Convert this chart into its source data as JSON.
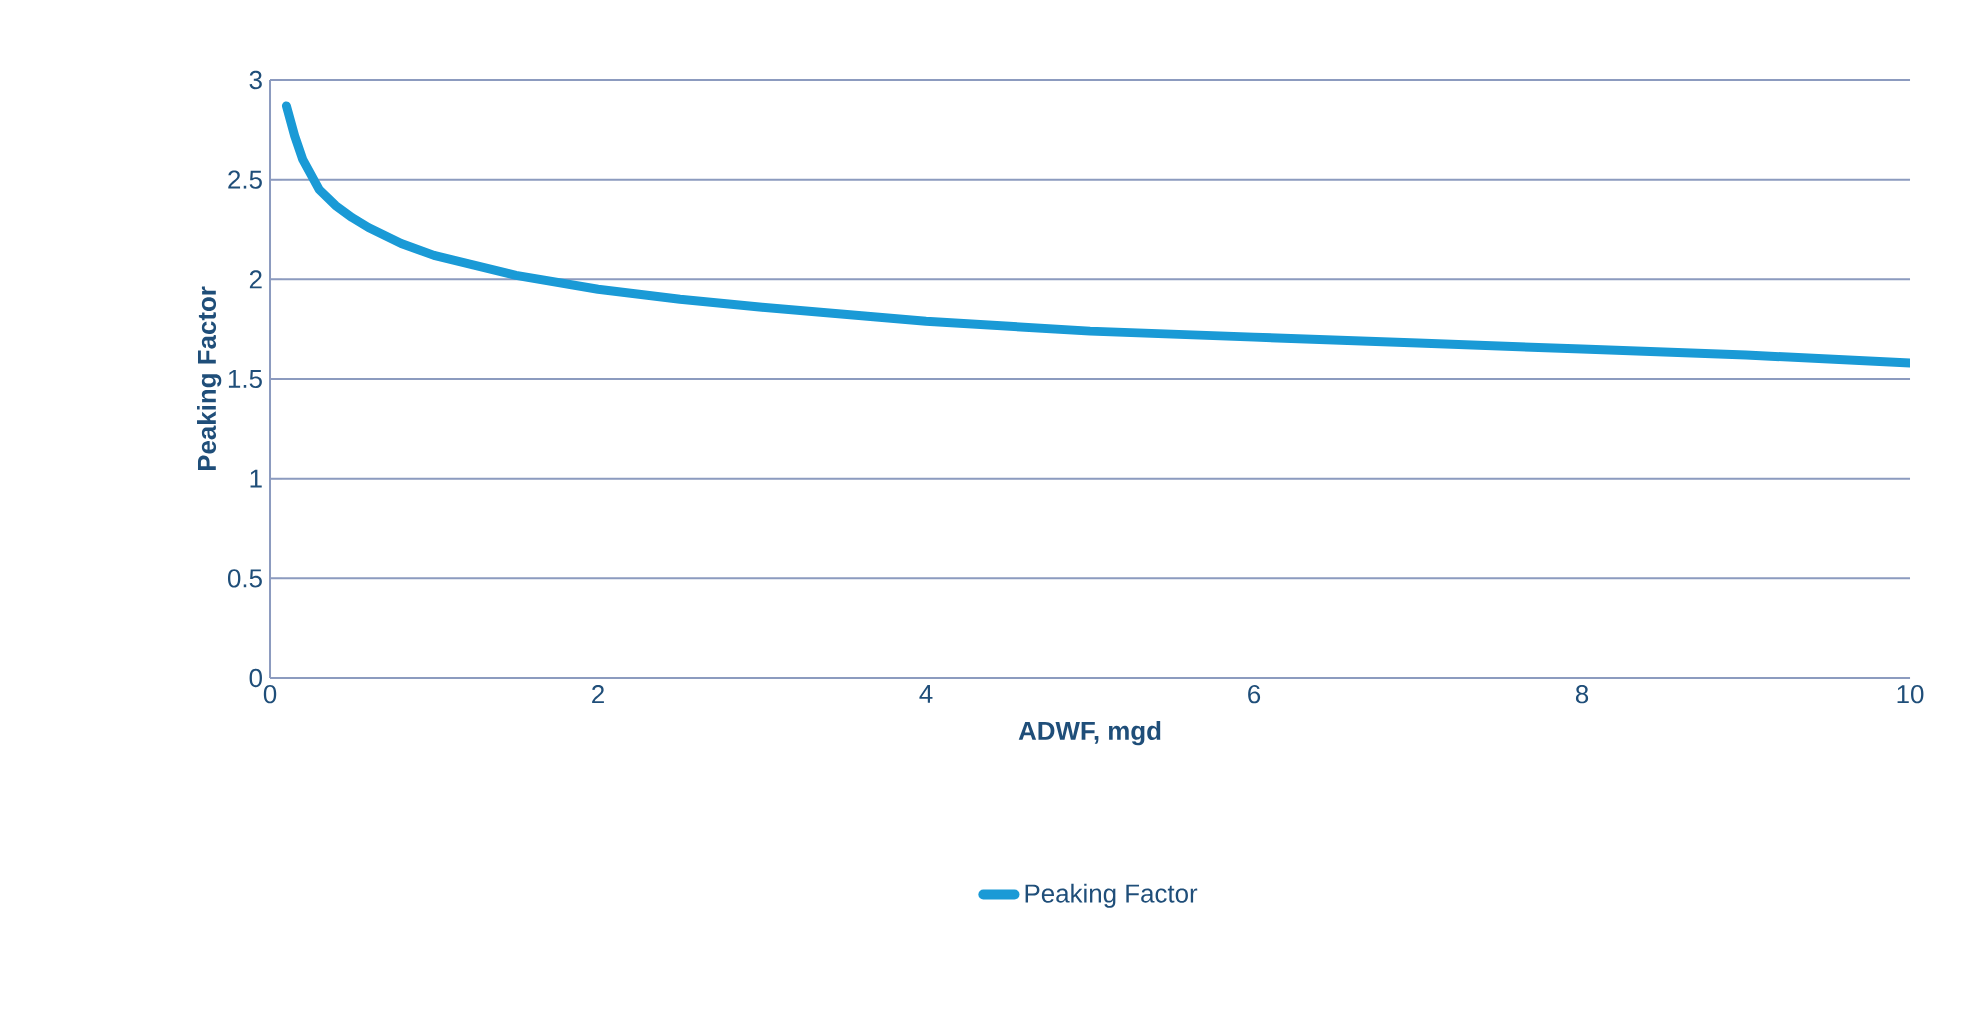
{
  "chart_data": {
    "type": "line",
    "xlabel": "ADWF, mgd",
    "ylabel": "Peaking Factor",
    "series": [
      {
        "name": "Peaking Factor",
        "color": "#1a9ad6",
        "x": [
          0.1,
          0.15,
          0.2,
          0.3,
          0.4,
          0.5,
          0.6,
          0.8,
          1,
          1.5,
          2,
          2.5,
          3,
          4,
          5,
          6,
          7,
          8,
          9,
          10
        ],
        "values": [
          2.87,
          2.72,
          2.6,
          2.45,
          2.37,
          2.31,
          2.26,
          2.18,
          2.12,
          2.02,
          1.95,
          1.9,
          1.86,
          1.79,
          1.74,
          1.71,
          1.68,
          1.65,
          1.62,
          1.58
        ]
      }
    ],
    "xlim": [
      0,
      10
    ],
    "ylim": [
      0,
      3
    ],
    "xticks": [
      0,
      2,
      4,
      6,
      8,
      10
    ],
    "yticks": [
      0,
      0.5,
      1,
      1.5,
      2,
      2.5,
      3
    ],
    "grid": "y",
    "legend": "bottom",
    "marker": "none",
    "line_style": "solid"
  }
}
